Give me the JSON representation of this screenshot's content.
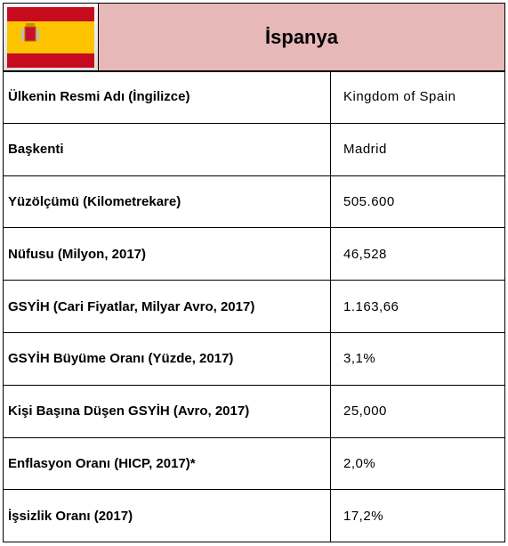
{
  "header": {
    "title": "İspanya"
  },
  "table": {
    "rows": [
      [
        "Ülkenin Resmi Adı (İngilizce)",
        "Kingdom of Spain"
      ],
      [
        "Başkenti",
        "Madrid"
      ],
      [
        "Yüzölçümü (Kilometrekare)",
        "505.600"
      ],
      [
        "Nüfusu (Milyon, 2017)",
        "46,528"
      ],
      [
        "GSYİH (Cari Fiyatlar, Milyar Avro, 2017)",
        "1.163,66"
      ],
      [
        "GSYİH Büyüme Oranı (Yüzde, 2017)",
        "3,1%"
      ],
      [
        "Kişi Başına Düşen GSYİH (Avro, 2017)",
        "25,000"
      ],
      [
        "Enflasyon Oranı (HICP, 2017)*",
        "2,0%"
      ],
      [
        "İşsizlik Oranı (2017)",
        "17,2%"
      ]
    ]
  }
}
